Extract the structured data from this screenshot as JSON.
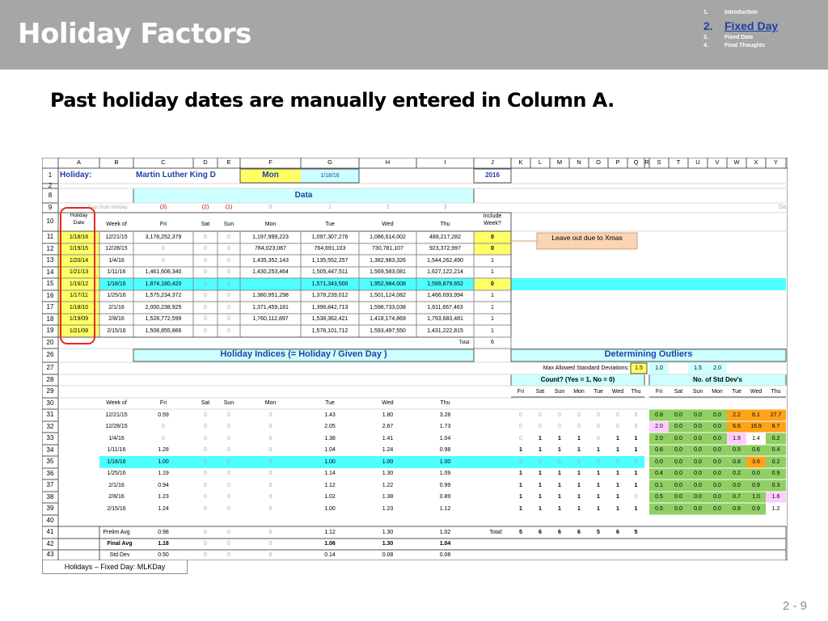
{
  "header": {
    "title": "Holiday Factors",
    "agenda": [
      {
        "num": "1.",
        "label": "Introduction"
      },
      {
        "num": "2.",
        "label": "Fixed Day"
      },
      {
        "num": "3.",
        "label": "Fixed Date"
      },
      {
        "num": "4.",
        "label": "Final Thoughts"
      }
    ]
  },
  "subtitle": "Past holiday dates are manually entered in Column A.",
  "sheet": {
    "tab_label": "Holidays – Fixed Day:  MLKDay",
    "columns": [
      "A",
      "B",
      "C",
      "D",
      "E",
      "F",
      "G",
      "H",
      "I",
      "J",
      "K",
      "L",
      "M",
      "N",
      "O",
      "P",
      "Q",
      "R",
      "S",
      "T",
      "U",
      "V",
      "W",
      "X",
      "Y"
    ],
    "row_numbers": [
      "1",
      "2",
      "8",
      "9",
      "10",
      "11",
      "12",
      "13",
      "14",
      "15",
      "16",
      "17",
      "18",
      "19",
      "20",
      "26",
      "27",
      "28",
      "29",
      "30",
      "31",
      "32",
      "33",
      "34",
      "35",
      "36",
      "37",
      "38",
      "39",
      "40",
      "41",
      "42",
      "43"
    ],
    "colors": {
      "yellow": "#ffff66",
      "cyan": "#4dffff",
      "light_cyan": "#ccffff",
      "green": "#8fcf63",
      "orange": "#ffa31a",
      "pink": "#ffccff",
      "peach": "#fbd4b4",
      "red_circle": "#e8281e"
    },
    "row1": {
      "holiday_label": "Holiday:",
      "holiday_name": "Martin Luther King D",
      "day": "Mon",
      "date": "1/18/16",
      "year": "2016"
    },
    "data_header": "Data",
    "row9": {
      "days_from_holiday": "Days from Holiday:",
      "offsets": [
        "(3)",
        "(2)",
        "(1)",
        "0",
        "1",
        "2",
        "3"
      ],
      "right_clip": "Da"
    },
    "row10": {
      "holiday_date": [
        "Holiday",
        "Date"
      ],
      "week_of": "Week of",
      "days": [
        "Fri",
        "Sat",
        "Sun",
        "Mon",
        "Tue",
        "Wed",
        "Thu"
      ],
      "include_week": [
        "Include",
        "Week?"
      ]
    },
    "data_rows": [
      {
        "date": "1/18/16",
        "week": "12/21/15",
        "vals": [
          "3,178,252,379",
          "0",
          "0",
          "1,197,999,223",
          "1,097,307,276",
          "1,086,614,002",
          "488,217,282"
        ],
        "include": "0"
      },
      {
        "date": "1/19/15",
        "week": "12/28/15",
        "vals": [
          "0",
          "0",
          "0",
          "784,023,087",
          "764,691,103",
          "730,781,107",
          "923,372,997"
        ],
        "include": "0"
      },
      {
        "date": "1/20/14",
        "week": "1/4/16",
        "vals": [
          "0",
          "0",
          "0",
          "1,435,352,143",
          "1,135,552,257",
          "1,382,983,326",
          "1,544,262,490"
        ],
        "include": "1"
      },
      {
        "date": "1/21/13",
        "week": "1/11/16",
        "vals": [
          "1,461,608,340",
          "0",
          "0",
          "1,430,253,464",
          "1,505,447,511",
          "1,569,583,081",
          "1,627,122,214"
        ],
        "include": "1"
      },
      {
        "date": "1/16/12",
        "week": "1/18/16",
        "vals": [
          "1,874,180,420",
          "0",
          "0",
          "",
          "1,571,343,500",
          "1,952,984,008",
          "1,599,879,652"
        ],
        "include": "0"
      },
      {
        "date": "1/17/11",
        "week": "1/25/16",
        "vals": [
          "1,575,234,372",
          "0",
          "0",
          "1,380,951,298",
          "1,378,239,012",
          "1,501,124,082",
          "1,466,693,994"
        ],
        "include": "1"
      },
      {
        "date": "1/18/10",
        "week": "2/1/16",
        "vals": [
          "2,000,238,925",
          "0",
          "0",
          "1,371,459,181",
          "1,398,842,713",
          "1,598,733,038",
          "1,611,667,463"
        ],
        "include": "1"
      },
      {
        "date": "1/19/09",
        "week": "2/8/16",
        "vals": [
          "1,528,772,599",
          "0",
          "0",
          "1,760,112,897",
          "1,538,362,421",
          "1,418,174,869",
          "1,793,683,481"
        ],
        "include": "1"
      },
      {
        "date": "1/21/08",
        "week": "2/15/16",
        "vals": [
          "1,508,855,866",
          "0",
          "0",
          "",
          "1,578,101,712",
          "1,593,497,550",
          "1,431,222,815"
        ],
        "include": "1"
      }
    ],
    "note": "Leave out due to Xmas",
    "total_label": "Total:",
    "total_value": "6",
    "indices_header": "Holiday Indices  (= Holiday / Given Day )",
    "outliers_header": "Determining Outliers",
    "max_std_label": "Max Allowed Standard Deviations:",
    "max_std_values": [
      "1.5",
      "1.0",
      "1.5",
      "2.0"
    ],
    "count_label": "Count?  (Yes = 1, No = 0)",
    "std_label": "No. of Std Dev's",
    "row29_days": [
      "Fri",
      "Sat",
      "Sun",
      "Mon",
      "Tue",
      "Wed",
      "Thu"
    ],
    "row30": {
      "week_of": "Week of",
      "days": [
        "Fri",
        "Sat",
        "Sun",
        "Mon",
        "Tue",
        "Wed",
        "Thu"
      ]
    },
    "index_rows": [
      {
        "week": "12/21/15",
        "vals": [
          "0.59",
          "0",
          "0",
          "0",
          "1.43",
          "1.80",
          "3.28"
        ],
        "count": [
          "0",
          "0",
          "0",
          "0",
          "0",
          "0",
          "0"
        ],
        "std": [
          "0.8",
          "0.0",
          "0.0",
          "0.0",
          "2.2",
          "6.1",
          "27.7"
        ]
      },
      {
        "week": "12/28/15",
        "vals": [
          "0",
          "0",
          "0",
          "0",
          "2.05",
          "2.67",
          "1.73"
        ],
        "count": [
          "0",
          "0",
          "0",
          "0",
          "0",
          "0",
          "0"
        ],
        "std": [
          "2.0",
          "0.0",
          "0.0",
          "0.0",
          "6.6",
          "16.9",
          "8.7"
        ]
      },
      {
        "week": "1/4/16",
        "vals": [
          "0",
          "0",
          "0",
          "0",
          "1.38",
          "1.41",
          "1.04"
        ],
        "count": [
          "0",
          "1",
          "1",
          "1",
          "0",
          "1",
          "1"
        ],
        "std": [
          "2.0",
          "0.0",
          "0.0",
          "0.0",
          "1.9",
          "1.4",
          "0.2"
        ]
      },
      {
        "week": "1/11/16",
        "vals": [
          "1.28",
          "0",
          "0",
          "0",
          "1.04",
          "1.24",
          "0.98"
        ],
        "count": [
          "1",
          "1",
          "1",
          "1",
          "1",
          "1",
          "1"
        ],
        "std": [
          "0.6",
          "0.0",
          "0.0",
          "0.0",
          "0.5",
          "0.6",
          "0.4"
        ]
      },
      {
        "week": "1/18/16",
        "vals": [
          "1.00",
          "0",
          "0",
          "0",
          "1.00",
          "1.00",
          "1.00"
        ],
        "count": [
          "0",
          "0",
          "0",
          "0",
          "0",
          "0",
          "0"
        ],
        "std": [
          "0.0",
          "0.0",
          "0.0",
          "0.0",
          "0.8",
          "3.6",
          "0.2"
        ]
      },
      {
        "week": "1/25/16",
        "vals": [
          "1.19",
          "0",
          "0",
          "0",
          "1.14",
          "1.30",
          "1.09"
        ],
        "count": [
          "1",
          "1",
          "1",
          "1",
          "1",
          "1",
          "1"
        ],
        "std": [
          "0.4",
          "0.0",
          "0.0",
          "0.0",
          "0.2",
          "0.0",
          "0.9"
        ]
      },
      {
        "week": "2/1/16",
        "vals": [
          "0.94",
          "0",
          "0",
          "0",
          "1.12",
          "1.22",
          "0.99"
        ],
        "count": [
          "1",
          "1",
          "1",
          "1",
          "1",
          "1",
          "1"
        ],
        "std": [
          "0.1",
          "0.0",
          "0.0",
          "0.0",
          "0.0",
          "0.9",
          "0.3"
        ]
      },
      {
        "week": "2/8/16",
        "vals": [
          "1.23",
          "0",
          "0",
          "0",
          "1.02",
          "1.38",
          "0.89"
        ],
        "count": [
          "1",
          "1",
          "1",
          "1",
          "1",
          "1",
          "0"
        ],
        "std": [
          "0.5",
          "0.0",
          "0.0",
          "0.0",
          "0.7",
          "1.0",
          "1.6"
        ]
      },
      {
        "week": "2/15/16",
        "vals": [
          "1.24",
          "0",
          "0",
          "0",
          "1.00",
          "1.23",
          "1.12"
        ],
        "count": [
          "1",
          "1",
          "1",
          "1",
          "1",
          "1",
          "1"
        ],
        "std": [
          "0.5",
          "0.0",
          "0.0",
          "0.0",
          "0.9",
          "0.9",
          "1.2"
        ]
      }
    ],
    "prelim": {
      "label": "Prelim Avg",
      "vals": [
        "0.98",
        "0",
        "0",
        "0",
        "1.12",
        "1.30",
        "1.02"
      ],
      "total_label": "Total:",
      "totals": [
        "5",
        "6",
        "6",
        "6",
        "5",
        "6",
        "5"
      ]
    },
    "final": {
      "label": "Final Avg",
      "vals": [
        "1.18",
        "0",
        "0",
        "0",
        "1.06",
        "1.30",
        "1.04"
      ]
    },
    "stddev": {
      "label": "Std Dev",
      "vals": [
        "0.50",
        "0",
        "0",
        "0",
        "0.14",
        "0.08",
        "0.08"
      ]
    }
  },
  "page_number": "2 -   9"
}
